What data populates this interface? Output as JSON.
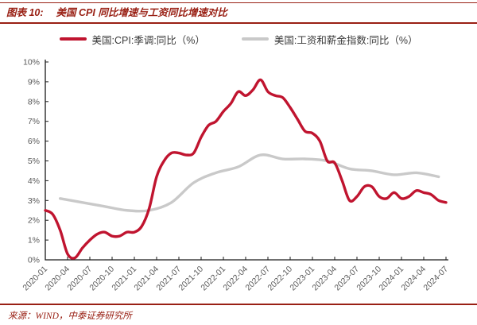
{
  "header": {
    "label": "图表 10:",
    "title": "美国 CPI 同比增速与工资同比增速对比"
  },
  "footer": {
    "source": "来源：WIND，中泰证券研究所"
  },
  "theme": {
    "accent_red": "#992014",
    "axis_color": "#1a1a1a",
    "tick_label_color": "#595959",
    "legend_text_color": "#3a3a3a",
    "background": "#ffffff"
  },
  "chart_data": {
    "type": "line",
    "title": "美国 CPI 同比增速与工资同比增速对比",
    "xlabel": "",
    "ylabel": "",
    "ylim": [
      0,
      10
    ],
    "grid": false,
    "legend_position": "top",
    "y_tick_labels": [
      "0%",
      "1%",
      "2%",
      "3%",
      "4%",
      "5%",
      "6%",
      "7%",
      "8%",
      "9%",
      "10%"
    ],
    "x_tick_labels": [
      "2020-01",
      "2020-04",
      "2020-07",
      "2020-10",
      "2021-01",
      "2021-04",
      "2021-07",
      "2021-10",
      "2022-01",
      "2022-04",
      "2022-07",
      "2022-10",
      "2023-01",
      "2023-04",
      "2023-07",
      "2023-10",
      "2024-01",
      "2024-04",
      "2024-07"
    ],
    "x_months_span": 54,
    "series": [
      {
        "id": "cpi",
        "name": "美国:CPI:季调:同比（%）",
        "color": "#c0142f",
        "start_month_index": 0,
        "month_step": 1,
        "values": [
          2.5,
          2.3,
          1.5,
          0.3,
          0.1,
          0.6,
          1.0,
          1.3,
          1.4,
          1.2,
          1.2,
          1.4,
          1.4,
          1.7,
          2.6,
          4.2,
          5.0,
          5.4,
          5.4,
          5.3,
          5.4,
          6.2,
          6.8,
          7.0,
          7.5,
          7.9,
          8.5,
          8.3,
          8.6,
          9.1,
          8.5,
          8.3,
          8.2,
          7.7,
          7.1,
          6.5,
          6.4,
          6.0,
          5.0,
          4.9,
          4.0,
          3.0,
          3.2,
          3.7,
          3.7,
          3.2,
          3.1,
          3.4,
          3.1,
          3.2,
          3.5,
          3.4,
          3.3,
          3.0,
          2.9
        ]
      },
      {
        "id": "wage",
        "name": "美国:工资和薪金指数:同比（%）",
        "color": "#c9c9c9",
        "start_month_index": 2,
        "month_step": 3,
        "values": [
          3.1,
          2.9,
          2.7,
          2.5,
          2.5,
          2.9,
          3.9,
          4.4,
          4.7,
          5.3,
          5.1,
          5.1,
          5.0,
          4.6,
          4.5,
          4.3,
          4.4,
          4.2
        ]
      }
    ]
  }
}
